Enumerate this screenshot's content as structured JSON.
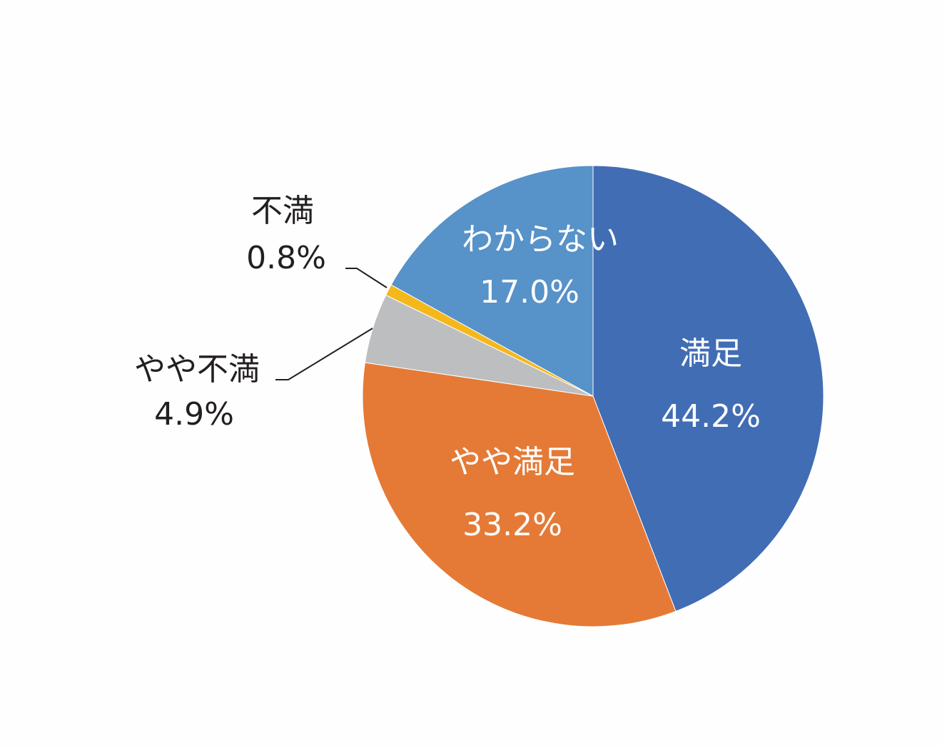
{
  "chart_data": {
    "type": "pie",
    "start": "12 o'clock",
    "direction": "clockwise",
    "legend": "none",
    "slices": [
      {
        "label": "満足",
        "value": 44.2,
        "value_text": "44.2%",
        "color": "#416db4",
        "label_pos": "inside"
      },
      {
        "label": "やや満足",
        "value": 33.2,
        "value_text": "33.2%",
        "color": "#e47a36",
        "label_pos": "inside"
      },
      {
        "label": "やや不満",
        "value": 4.9,
        "value_text": "4.9%",
        "color": "#bdbec0",
        "label_pos": "outside"
      },
      {
        "label": "不満",
        "value": 0.8,
        "value_text": "0.8%",
        "color": "#f4b81a",
        "label_pos": "outside"
      },
      {
        "label": "わからない",
        "value": 17.0,
        "value_text": "17.0%",
        "color": "#5792c9",
        "label_pos": "inside"
      }
    ]
  }
}
